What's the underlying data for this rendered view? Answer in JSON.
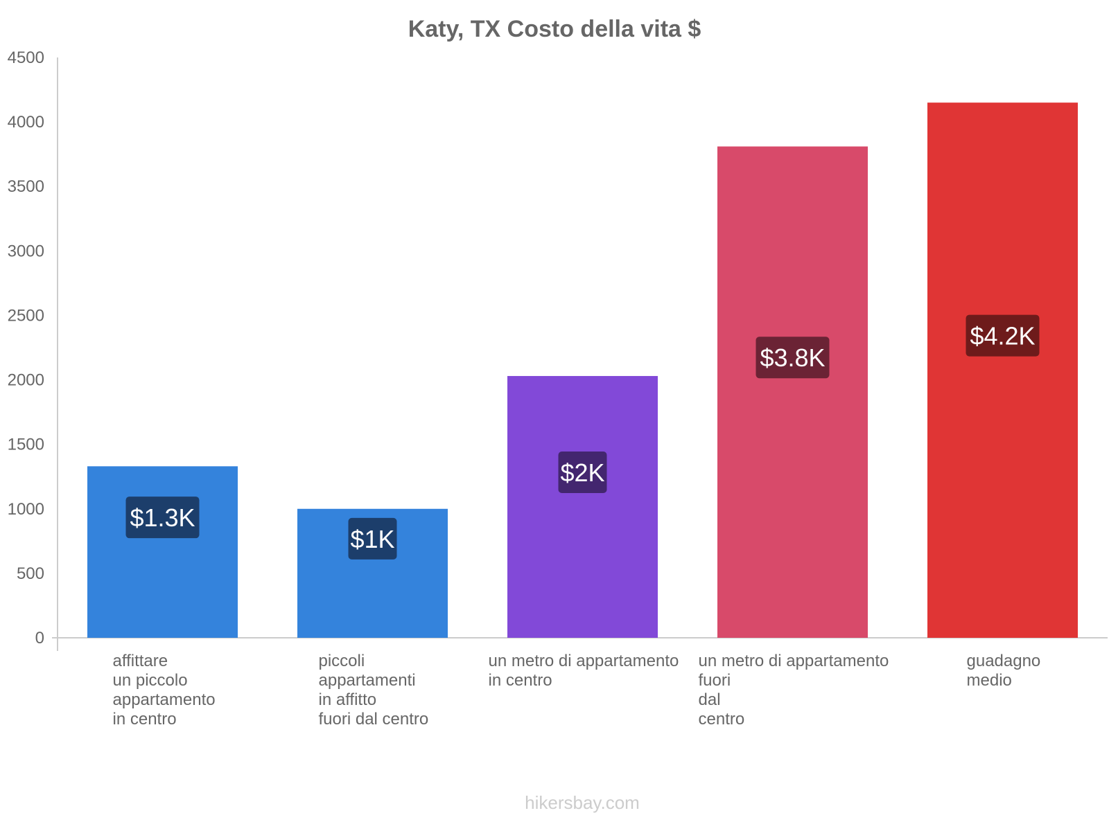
{
  "chart_data": {
    "type": "bar",
    "title": "Katy, TX Costo della vita $",
    "xlabel": "",
    "ylabel": "",
    "ylim": [
      0,
      4500
    ],
    "yticks": [
      0,
      500,
      1000,
      1500,
      2000,
      2500,
      3000,
      3500,
      4000,
      4500
    ],
    "grid": false,
    "categories": [
      [
        "affittare",
        "un piccolo",
        "appartamento",
        "in centro"
      ],
      [
        "piccoli",
        "appartamenti",
        "in affitto",
        "fuori dal centro"
      ],
      [
        "un metro di appartamento",
        "in centro"
      ],
      [
        "un metro di appartamento",
        "fuori",
        "dal",
        "centro"
      ],
      [
        "guadagno",
        "medio"
      ]
    ],
    "values": [
      1330,
      1000,
      2030,
      3810,
      4150
    ],
    "data_labels": [
      "$1.3K",
      "$1K",
      "$2K",
      "$3.8K",
      "$4.2K"
    ],
    "colors": [
      "#3483dc",
      "#3483dc",
      "#8249d8",
      "#d84a6a",
      "#e03535"
    ],
    "label_bg_colors": [
      "#1c3e6b",
      "#1c3e6b",
      "#43266f",
      "#6b2335",
      "#6e1b1b"
    ]
  },
  "footer": {
    "text": "hikersbay.com"
  }
}
